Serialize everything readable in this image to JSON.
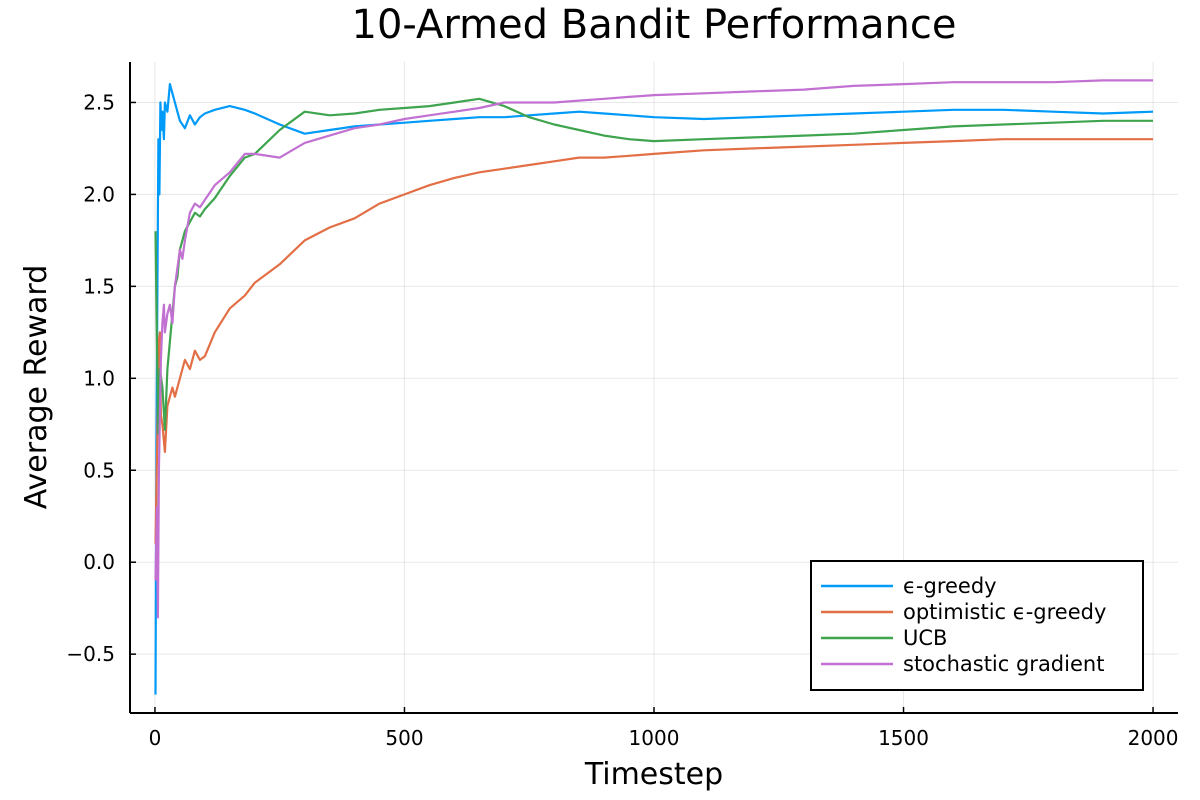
{
  "chart_data": {
    "type": "line",
    "title": "10-Armed Bandit Performance",
    "xlabel": "Timestep",
    "ylabel": "Average Reward",
    "xlim": [
      -50,
      2050
    ],
    "ylim": [
      -0.82,
      2.72
    ],
    "xticks": [
      0,
      500,
      1000,
      1500,
      2000
    ],
    "xtick_labels": [
      "0",
      "500",
      "1000",
      "1500",
      "2000"
    ],
    "yticks": [
      -0.5,
      0.0,
      0.5,
      1.0,
      1.5,
      2.0,
      2.5
    ],
    "ytick_labels": [
      "−0.5",
      "0.0",
      "0.5",
      "1.0",
      "1.5",
      "2.0",
      "2.5"
    ],
    "grid": true,
    "legend_position": "bottom-right",
    "series": [
      {
        "name": "ϵ-greedy",
        "color": "#009AF9",
        "points": [
          [
            1,
            -0.72
          ],
          [
            3,
            0.6
          ],
          [
            5,
            1.5
          ],
          [
            7,
            2.3
          ],
          [
            9,
            2.0
          ],
          [
            11,
            2.5
          ],
          [
            13,
            2.35
          ],
          [
            15,
            2.45
          ],
          [
            18,
            2.3
          ],
          [
            20,
            2.5
          ],
          [
            25,
            2.45
          ],
          [
            30,
            2.6
          ],
          [
            35,
            2.55
          ],
          [
            40,
            2.5
          ],
          [
            45,
            2.45
          ],
          [
            50,
            2.4
          ],
          [
            60,
            2.36
          ],
          [
            70,
            2.43
          ],
          [
            80,
            2.38
          ],
          [
            90,
            2.42
          ],
          [
            100,
            2.44
          ],
          [
            120,
            2.46
          ],
          [
            150,
            2.48
          ],
          [
            180,
            2.46
          ],
          [
            200,
            2.44
          ],
          [
            250,
            2.38
          ],
          [
            300,
            2.33
          ],
          [
            350,
            2.35
          ],
          [
            400,
            2.37
          ],
          [
            450,
            2.38
          ],
          [
            500,
            2.39
          ],
          [
            550,
            2.4
          ],
          [
            600,
            2.41
          ],
          [
            650,
            2.42
          ],
          [
            700,
            2.42
          ],
          [
            750,
            2.43
          ],
          [
            800,
            2.44
          ],
          [
            850,
            2.45
          ],
          [
            900,
            2.44
          ],
          [
            950,
            2.43
          ],
          [
            1000,
            2.42
          ],
          [
            1100,
            2.41
          ],
          [
            1200,
            2.42
          ],
          [
            1300,
            2.43
          ],
          [
            1400,
            2.44
          ],
          [
            1500,
            2.45
          ],
          [
            1600,
            2.46
          ],
          [
            1700,
            2.46
          ],
          [
            1800,
            2.45
          ],
          [
            1900,
            2.44
          ],
          [
            2000,
            2.45
          ]
        ]
      },
      {
        "name": "optimistic ϵ-greedy",
        "color": "#E26F46",
        "points": [
          [
            1,
            0.1
          ],
          [
            5,
            0.7
          ],
          [
            8,
            1.2
          ],
          [
            10,
            1.25
          ],
          [
            12,
            0.8
          ],
          [
            15,
            0.75
          ],
          [
            20,
            0.6
          ],
          [
            25,
            0.85
          ],
          [
            30,
            0.9
          ],
          [
            35,
            0.95
          ],
          [
            40,
            0.9
          ],
          [
            45,
            0.95
          ],
          [
            50,
            1.0
          ],
          [
            60,
            1.1
          ],
          [
            70,
            1.05
          ],
          [
            80,
            1.15
          ],
          [
            90,
            1.1
          ],
          [
            100,
            1.12
          ],
          [
            120,
            1.25
          ],
          [
            150,
            1.38
          ],
          [
            180,
            1.45
          ],
          [
            200,
            1.52
          ],
          [
            250,
            1.62
          ],
          [
            300,
            1.75
          ],
          [
            350,
            1.82
          ],
          [
            400,
            1.87
          ],
          [
            450,
            1.95
          ],
          [
            500,
            2.0
          ],
          [
            550,
            2.05
          ],
          [
            600,
            2.09
          ],
          [
            650,
            2.12
          ],
          [
            700,
            2.14
          ],
          [
            750,
            2.16
          ],
          [
            800,
            2.18
          ],
          [
            850,
            2.2
          ],
          [
            900,
            2.2
          ],
          [
            950,
            2.21
          ],
          [
            1000,
            2.22
          ],
          [
            1100,
            2.24
          ],
          [
            1200,
            2.25
          ],
          [
            1300,
            2.26
          ],
          [
            1400,
            2.27
          ],
          [
            1500,
            2.28
          ],
          [
            1600,
            2.29
          ],
          [
            1700,
            2.3
          ],
          [
            1800,
            2.3
          ],
          [
            1900,
            2.3
          ],
          [
            2000,
            2.3
          ]
        ]
      },
      {
        "name": "UCB",
        "color": "#3EA44E",
        "points": [
          [
            1,
            1.8
          ],
          [
            4,
            1.2
          ],
          [
            7,
            0.7
          ],
          [
            10,
            1.05
          ],
          [
            15,
            0.95
          ],
          [
            20,
            0.72
          ],
          [
            25,
            1.05
          ],
          [
            30,
            1.2
          ],
          [
            35,
            1.35
          ],
          [
            40,
            1.5
          ],
          [
            45,
            1.55
          ],
          [
            50,
            1.7
          ],
          [
            60,
            1.8
          ],
          [
            70,
            1.85
          ],
          [
            80,
            1.9
          ],
          [
            90,
            1.88
          ],
          [
            100,
            1.92
          ],
          [
            120,
            1.98
          ],
          [
            150,
            2.1
          ],
          [
            180,
            2.2
          ],
          [
            200,
            2.22
          ],
          [
            250,
            2.35
          ],
          [
            300,
            2.45
          ],
          [
            350,
            2.43
          ],
          [
            400,
            2.44
          ],
          [
            450,
            2.46
          ],
          [
            500,
            2.47
          ],
          [
            550,
            2.48
          ],
          [
            600,
            2.5
          ],
          [
            650,
            2.52
          ],
          [
            700,
            2.48
          ],
          [
            750,
            2.42
          ],
          [
            800,
            2.38
          ],
          [
            850,
            2.35
          ],
          [
            900,
            2.32
          ],
          [
            950,
            2.3
          ],
          [
            1000,
            2.29
          ],
          [
            1100,
            2.3
          ],
          [
            1200,
            2.31
          ],
          [
            1300,
            2.32
          ],
          [
            1400,
            2.33
          ],
          [
            1500,
            2.35
          ],
          [
            1600,
            2.37
          ],
          [
            1700,
            2.38
          ],
          [
            1800,
            2.39
          ],
          [
            1900,
            2.4
          ],
          [
            2000,
            2.4
          ]
        ]
      },
      {
        "name": "stochastic gradient",
        "color": "#C271D2",
        "points": [
          [
            1,
            -0.1
          ],
          [
            4,
            0.3
          ],
          [
            6,
            -0.3
          ],
          [
            8,
            0.5
          ],
          [
            10,
            0.8
          ],
          [
            12,
            1.1
          ],
          [
            15,
            1.3
          ],
          [
            18,
            1.4
          ],
          [
            20,
            1.25
          ],
          [
            25,
            1.35
          ],
          [
            30,
            1.4
          ],
          [
            35,
            1.3
          ],
          [
            40,
            1.5
          ],
          [
            45,
            1.6
          ],
          [
            50,
            1.7
          ],
          [
            55,
            1.65
          ],
          [
            60,
            1.75
          ],
          [
            70,
            1.9
          ],
          [
            80,
            1.95
          ],
          [
            90,
            1.93
          ],
          [
            100,
            1.97
          ],
          [
            120,
            2.05
          ],
          [
            150,
            2.12
          ],
          [
            180,
            2.22
          ],
          [
            200,
            2.22
          ],
          [
            250,
            2.2
          ],
          [
            300,
            2.28
          ],
          [
            350,
            2.32
          ],
          [
            400,
            2.36
          ],
          [
            450,
            2.38
          ],
          [
            500,
            2.41
          ],
          [
            550,
            2.43
          ],
          [
            600,
            2.45
          ],
          [
            650,
            2.47
          ],
          [
            700,
            2.5
          ],
          [
            750,
            2.5
          ],
          [
            800,
            2.5
          ],
          [
            850,
            2.51
          ],
          [
            900,
            2.52
          ],
          [
            950,
            2.53
          ],
          [
            1000,
            2.54
          ],
          [
            1100,
            2.55
          ],
          [
            1200,
            2.56
          ],
          [
            1300,
            2.57
          ],
          [
            1400,
            2.59
          ],
          [
            1500,
            2.6
          ],
          [
            1600,
            2.61
          ],
          [
            1700,
            2.61
          ],
          [
            1800,
            2.61
          ],
          [
            1900,
            2.62
          ],
          [
            2000,
            2.62
          ]
        ]
      }
    ]
  }
}
